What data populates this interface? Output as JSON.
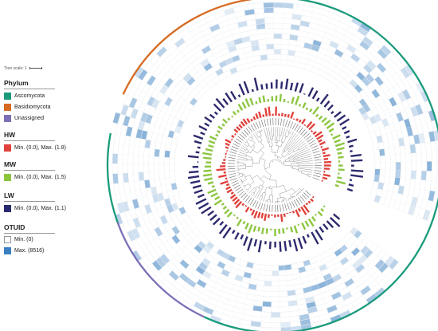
{
  "tree_scale": {
    "label": "Tree scale: 1"
  },
  "phylum": {
    "title": "Phylum",
    "items": [
      {
        "label": "Ascomycota",
        "color": "#1a9b7c"
      },
      {
        "label": "Basidiomycota",
        "color": "#d66a22"
      },
      {
        "label": "Unassigned",
        "color": "#7e6fb7"
      }
    ]
  },
  "hw": {
    "title": "HW",
    "label": "Min. (0.0), Max. (1.8)",
    "color": "#e0423c"
  },
  "mw": {
    "title": "MW",
    "label": "Min. (0.0), Max. (1.5)",
    "color": "#8cc63e"
  },
  "lw": {
    "title": "LW",
    "label": "Min. (0.0), Max. (1.1)",
    "color": "#2c2a6e"
  },
  "otuid": {
    "title": "OTUID",
    "min_label": "Min. (0)",
    "min_color": "#ffffff",
    "max_label": "Max. (8516)",
    "max_color": "#3a7fc0"
  }
}
